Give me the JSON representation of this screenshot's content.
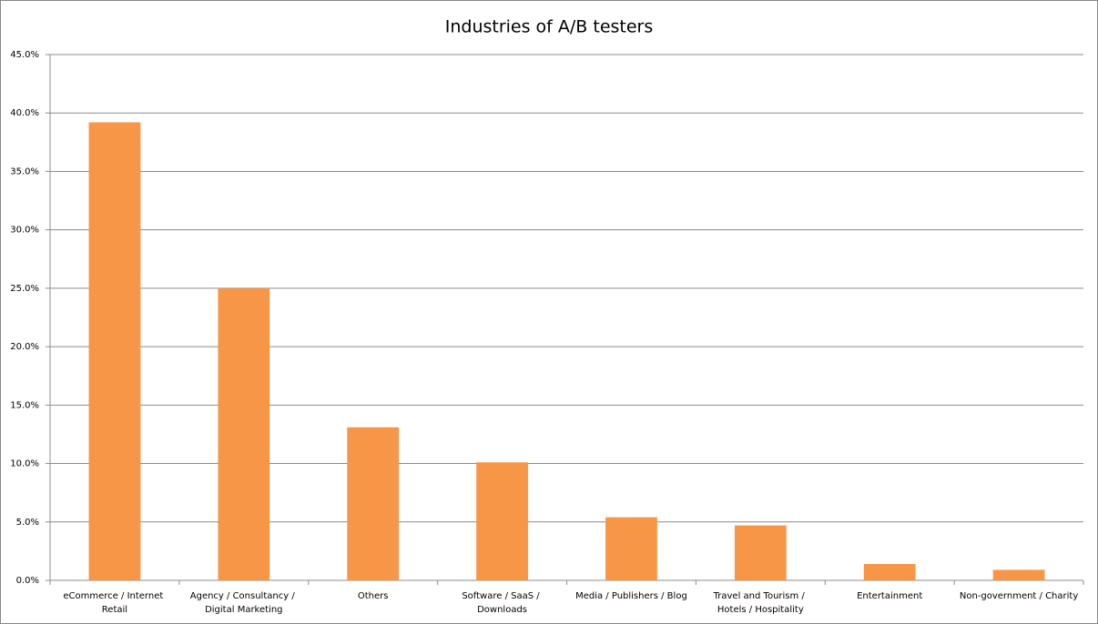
{
  "chart_data": {
    "type": "bar",
    "title": "Industries of A/B testers",
    "categories": [
      "eCommerce / Internet Retail",
      "Agency / Consultancy / Digital Marketing",
      "Others",
      "Software / SaaS / Downloads",
      "Media / Publishers / Blog",
      "Travel and Tourism / Hotels / Hospitality",
      "Entertainment",
      "Non-government / Charity"
    ],
    "values": [
      39.2,
      25.0,
      13.1,
      10.1,
      5.4,
      4.7,
      1.4,
      0.9
    ],
    "color": "#f79646",
    "ylim": [
      0,
      45
    ],
    "yticks": [
      {
        "value": 0,
        "label": "0.0%"
      },
      {
        "value": 5,
        "label": "5.0%"
      },
      {
        "value": 10,
        "label": "10.0%"
      },
      {
        "value": 15,
        "label": "15.0%"
      },
      {
        "value": 20,
        "label": "20.0%"
      },
      {
        "value": 25,
        "label": "25.0%"
      },
      {
        "value": 30,
        "label": "30.0%"
      },
      {
        "value": 35,
        "label": "35.0%"
      },
      {
        "value": 40,
        "label": "40.0%"
      },
      {
        "value": 45,
        "label": "45.0%"
      }
    ],
    "grid": true
  }
}
